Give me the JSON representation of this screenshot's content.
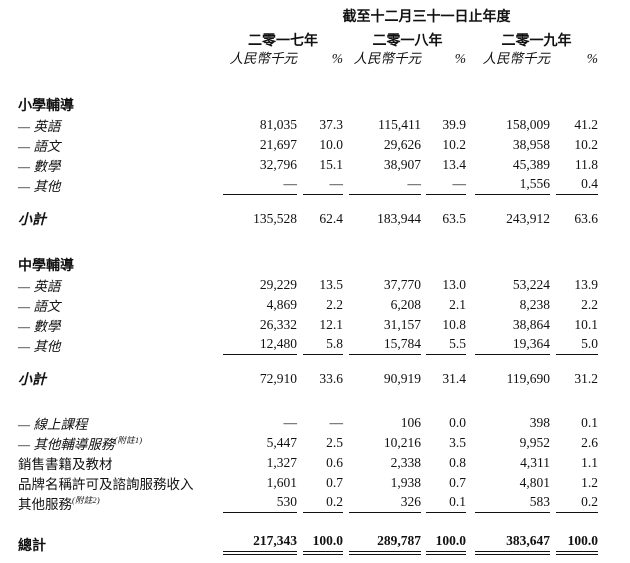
{
  "colors": {
    "text": "#111111",
    "background": "#ffffff",
    "rule": "#111111"
  },
  "table": {
    "title": "截至十二月三十一日止年度",
    "years": [
      "二零一七年",
      "二零一八年",
      "二零一九年"
    ],
    "unit_label": "人民幣千元",
    "pct_label": "%",
    "rows": [
      {
        "type": "section",
        "label": "小學輔導",
        "values": [
          "",
          "",
          "",
          "",
          "",
          ""
        ]
      },
      {
        "type": "item",
        "italic": true,
        "label": "— 英語",
        "values": [
          "81,035",
          "37.3",
          "115,411",
          "39.9",
          "158,009",
          "41.2"
        ]
      },
      {
        "type": "item",
        "italic": true,
        "label": "— 語文",
        "values": [
          "21,697",
          "10.0",
          "29,626",
          "10.2",
          "38,958",
          "10.2"
        ]
      },
      {
        "type": "item",
        "italic": true,
        "label": "— 數學",
        "values": [
          "32,796",
          "15.1",
          "38,907",
          "13.4",
          "45,389",
          "11.8"
        ]
      },
      {
        "type": "item",
        "italic": true,
        "underline": true,
        "label": "— 其他",
        "values": [
          "—",
          "—",
          "—",
          "—",
          "1,556",
          "0.4"
        ]
      },
      {
        "type": "subtotal",
        "label": "小計",
        "values": [
          "135,528",
          "62.4",
          "183,944",
          "63.5",
          "243,912",
          "63.6"
        ]
      },
      {
        "type": "section",
        "label": "中學輔導",
        "values": [
          "",
          "",
          "",
          "",
          "",
          ""
        ]
      },
      {
        "type": "item",
        "italic": true,
        "label": "— 英語",
        "values": [
          "29,229",
          "13.5",
          "37,770",
          "13.0",
          "53,224",
          "13.9"
        ]
      },
      {
        "type": "item",
        "italic": true,
        "label": "— 語文",
        "values": [
          "4,869",
          "2.2",
          "6,208",
          "2.1",
          "8,238",
          "2.2"
        ]
      },
      {
        "type": "item",
        "italic": true,
        "label": "— 數學",
        "values": [
          "26,332",
          "12.1",
          "31,157",
          "10.8",
          "38,864",
          "10.1"
        ]
      },
      {
        "type": "item",
        "italic": true,
        "underline": true,
        "label": "— 其他",
        "values": [
          "12,480",
          "5.8",
          "15,784",
          "5.5",
          "19,364",
          "5.0"
        ]
      },
      {
        "type": "subtotal",
        "label": "小計",
        "values": [
          "72,910",
          "33.6",
          "90,919",
          "31.4",
          "119,690",
          "31.2"
        ]
      },
      {
        "type": "item",
        "italic": true,
        "gap_before": true,
        "label": "— 線上課程",
        "values": [
          "—",
          "—",
          "106",
          "0.0",
          "398",
          "0.1"
        ]
      },
      {
        "type": "item",
        "italic": true,
        "label": "— 其他輔導服務",
        "note": "(附註1)",
        "values": [
          "5,447",
          "2.5",
          "10,216",
          "3.5",
          "9,952",
          "2.6"
        ]
      },
      {
        "type": "item",
        "label": "銷售書籍及教材",
        "values": [
          "1,327",
          "0.6",
          "2,338",
          "0.8",
          "4,311",
          "1.1"
        ]
      },
      {
        "type": "item",
        "label": "品牌名稱許可及諮詢服務收入",
        "values": [
          "1,601",
          "0.7",
          "1,938",
          "0.7",
          "4,801",
          "1.2"
        ]
      },
      {
        "type": "item",
        "underline": true,
        "label": "其他服務",
        "note": "(附註2)",
        "values": [
          "530",
          "0.2",
          "326",
          "0.1",
          "583",
          "0.2"
        ]
      },
      {
        "type": "total",
        "label": "總計",
        "values": [
          "217,343",
          "100.0",
          "289,787",
          "100.0",
          "383,647",
          "100.0"
        ]
      }
    ]
  }
}
